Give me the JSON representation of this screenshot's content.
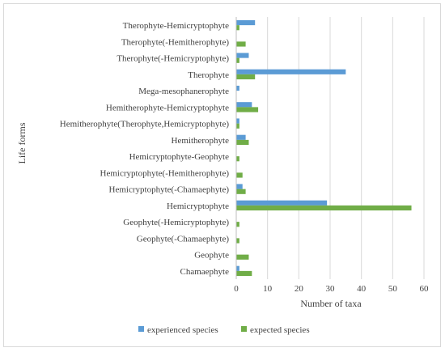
{
  "chart_data": {
    "type": "bar",
    "orientation": "horizontal",
    "title": "",
    "xlabel": "Number of taxa",
    "ylabel": "Life forms",
    "xlim": [
      0,
      60
    ],
    "x_ticks": [
      0,
      10,
      20,
      30,
      40,
      50,
      60
    ],
    "grid": "vertical",
    "legend_position": "bottom",
    "categories": [
      "Therophyte-Hemicryptophyte",
      "Therophyte(-Hemitherophyte)",
      "Therophyte(-Hemicryptophyte)",
      "Therophyte",
      "Mega-mesophanerophyte",
      "Hemitherophyte-Hemicryptophyte",
      "Hemitherophyte(Therophyte,Hemicryptophyte)",
      "Hemitherophyte",
      "Hemicryptophyte-Geophyte",
      "Hemicryptophyte(-Hemitherophyte)",
      "Hemicryptophyte(-Chamaephyte)",
      "Hemicryptophyte",
      "Geophyte(-Hemicryptophyte)",
      "Geophyte(-Chamaephyte)",
      "Geophyte",
      "Chamaephyte"
    ],
    "series": [
      {
        "name": "experienced species",
        "color": "#5b9bd5",
        "values": [
          6,
          0,
          4,
          35,
          1,
          5,
          1,
          3,
          0,
          0,
          2,
          29,
          0,
          0,
          0,
          1
        ]
      },
      {
        "name": "expected species",
        "color": "#70ad47",
        "values": [
          1,
          3,
          1,
          6,
          0,
          7,
          1,
          4,
          1,
          2,
          3,
          56,
          1,
          1,
          4,
          5
        ]
      }
    ]
  }
}
